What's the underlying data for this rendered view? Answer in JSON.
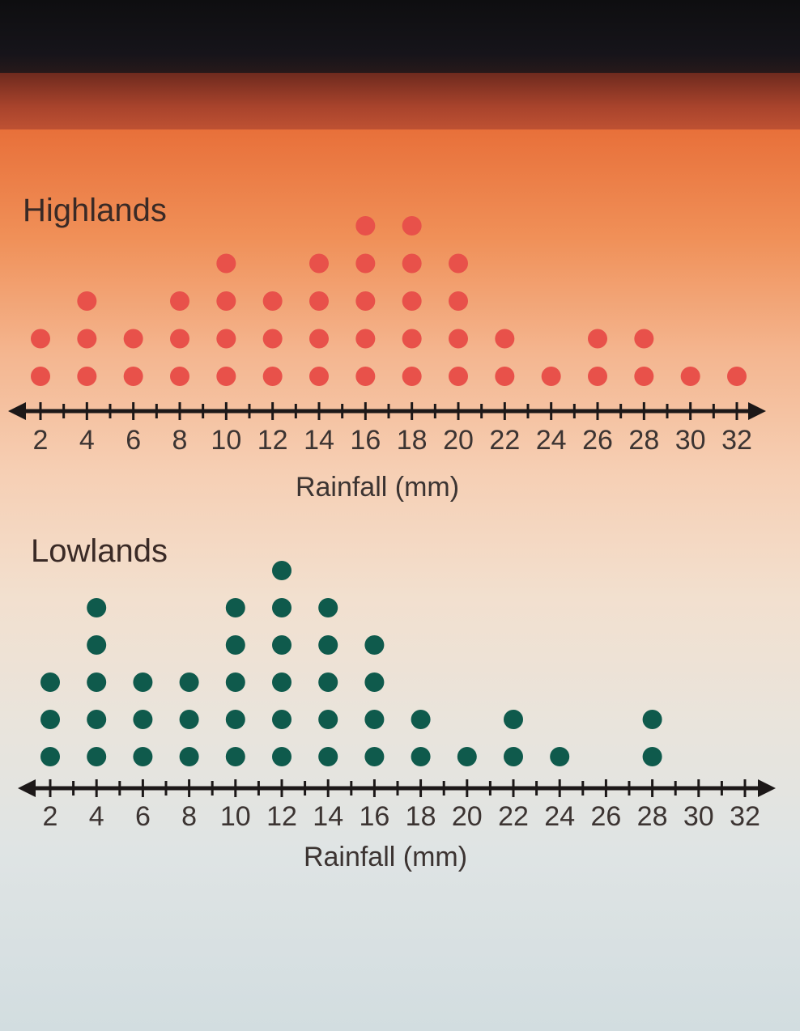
{
  "chart_data": [
    {
      "type": "scatter",
      "plot_style": "dot-plot",
      "title": "Highlands",
      "xlabel": "Rainfall (mm)",
      "ylabel": "",
      "xlim": [
        2,
        32
      ],
      "x_ticks": [
        2,
        4,
        6,
        8,
        10,
        12,
        14,
        16,
        18,
        20,
        22,
        24,
        26,
        28,
        30,
        32
      ],
      "dot_color": "#e8514a",
      "x": [
        2,
        4,
        6,
        8,
        10,
        12,
        14,
        16,
        18,
        20,
        22,
        24,
        26,
        28,
        30,
        32
      ],
      "counts": [
        2,
        3,
        2,
        3,
        4,
        3,
        4,
        5,
        5,
        4,
        2,
        1,
        2,
        2,
        1,
        1
      ]
    },
    {
      "type": "scatter",
      "plot_style": "dot-plot",
      "title": "Lowlands",
      "xlabel": "Rainfall (mm)",
      "ylabel": "",
      "xlim": [
        2,
        32
      ],
      "x_ticks": [
        2,
        4,
        6,
        8,
        10,
        12,
        14,
        16,
        18,
        20,
        22,
        24,
        26,
        28,
        30,
        32
      ],
      "dot_color": "#0f5a4c",
      "x": [
        2,
        4,
        6,
        8,
        10,
        12,
        14,
        16,
        18,
        20,
        22,
        24,
        26,
        28,
        30,
        32
      ],
      "counts": [
        3,
        5,
        3,
        3,
        5,
        6,
        5,
        4,
        2,
        1,
        2,
        1,
        0,
        2,
        0,
        0
      ]
    }
  ]
}
